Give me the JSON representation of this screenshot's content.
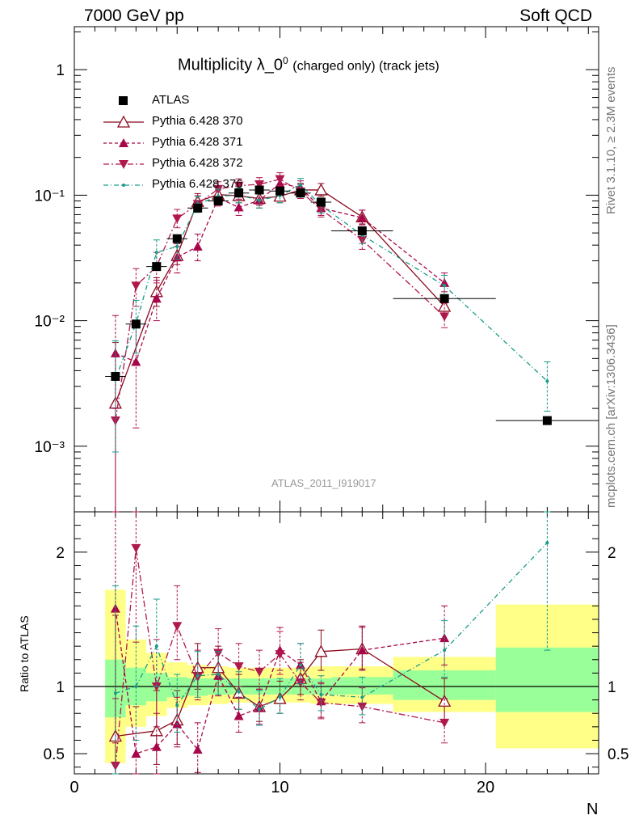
{
  "header": {
    "energy_label": "7000 GeV pp",
    "category_label": "Soft QCD",
    "rivet_label": "Rivet 3.1.10, ≥ 2.3M events",
    "mcplots_label": "mcplots.cern.ch [arXiv:1306.3436]",
    "analysis_ref": "ATLAS_2011_I919017"
  },
  "chart_data": [
    {
      "type": "scatter",
      "title": "Multiplicity λ_0",
      "title_sup": "0",
      "title_suffix": "(charged only) (track jets)",
      "xlabel": "N",
      "yscale": "log",
      "xlim": [
        0,
        25.5
      ],
      "ylim": [
        0.0003,
        2.2
      ],
      "y_ticks": [
        {
          "value": 1,
          "label": "1"
        },
        {
          "value": 0.1,
          "label": "10⁻¹"
        },
        {
          "value": 0.01,
          "label": "10⁻²"
        },
        {
          "value": 0.001,
          "label": "10⁻³"
        }
      ],
      "series": [
        {
          "name": "ATLAS",
          "color": "#000000",
          "x": [
            2,
            3,
            4,
            5,
            6,
            7,
            8,
            9,
            10,
            11,
            12,
            14,
            18,
            23
          ],
          "y": [
            0.0036,
            0.0094,
            0.027,
            0.045,
            0.079,
            0.09,
            0.104,
            0.11,
            0.108,
            0.104,
            0.088,
            0.052,
            0.015,
            0.0016
          ],
          "xerr": [
            0.5,
            0.5,
            0.5,
            0.5,
            0.5,
            0.5,
            0.5,
            0.5,
            0.5,
            0.5,
            0.5,
            1.5,
            2.5,
            2.5
          ]
        },
        {
          "name": "Pythia 6.428 370",
          "color": "#8b0a1e",
          "x": [
            2,
            4,
            5,
            6,
            7,
            8,
            9,
            10,
            11,
            12,
            14,
            18
          ],
          "y": [
            0.0022,
            0.017,
            0.033,
            0.089,
            0.101,
            0.099,
            0.094,
            0.098,
            0.11,
            0.11,
            0.067,
            0.013
          ],
          "yerr_low": [
            0.0019,
            0.004,
            0.005,
            0.012,
            0.012,
            0.012,
            0.011,
            0.011,
            0.012,
            0.012,
            0.008,
            0.002
          ],
          "yerr_high": [
            0.0045,
            0.005,
            0.006,
            0.014,
            0.014,
            0.014,
            0.013,
            0.013,
            0.014,
            0.014,
            0.009,
            0.003
          ]
        },
        {
          "name": "Pythia 6.428 371",
          "color": "#a8064a",
          "x": [
            2,
            3,
            4,
            5,
            6,
            7,
            8,
            9,
            10,
            11,
            12,
            14,
            18
          ],
          "y": [
            0.0055,
            0.0047,
            0.015,
            0.032,
            0.039,
            0.095,
            0.08,
            0.091,
            0.124,
            0.115,
            0.079,
            0.066,
            0.02
          ],
          "yerr_low": [
            0.0035,
            0.0033,
            0.005,
            0.008,
            0.009,
            0.013,
            0.011,
            0.012,
            0.014,
            0.013,
            0.01,
            0.008,
            0.003
          ],
          "yerr_high": [
            0.0055,
            0.005,
            0.006,
            0.009,
            0.01,
            0.015,
            0.013,
            0.014,
            0.016,
            0.015,
            0.012,
            0.01,
            0.004
          ]
        },
        {
          "name": "Pythia 6.428 372",
          "color": "#b0174d",
          "x": [
            2,
            3,
            4,
            5,
            6,
            7,
            8,
            9,
            10,
            11,
            12,
            14,
            18
          ],
          "y": [
            0.0016,
            0.019,
            0.027,
            0.065,
            0.085,
            0.112,
            0.119,
            0.122,
            0.134,
            0.107,
            0.077,
            0.044,
            0.0108
          ],
          "yerr_low": [
            0.0013,
            0.006,
            0.007,
            0.01,
            0.012,
            0.014,
            0.014,
            0.014,
            0.015,
            0.013,
            0.01,
            0.007,
            0.002
          ],
          "yerr_high": [
            0.002,
            0.007,
            0.008,
            0.012,
            0.014,
            0.016,
            0.016,
            0.016,
            0.017,
            0.015,
            0.012,
            0.008,
            0.003
          ]
        },
        {
          "name": "Pythia 6.428 376",
          "color": "#1a9c8a",
          "x": [
            2,
            3,
            4,
            5,
            6,
            7,
            8,
            9,
            10,
            11,
            12,
            14,
            18,
            23
          ],
          "y": [
            0.0034,
            0.0095,
            0.035,
            0.039,
            0.085,
            0.098,
            0.1,
            0.091,
            0.099,
            0.121,
            0.083,
            0.048,
            0.019,
            0.0033
          ],
          "yerr_low": [
            0.0025,
            0.004,
            0.008,
            0.008,
            0.012,
            0.013,
            0.013,
            0.012,
            0.012,
            0.014,
            0.011,
            0.007,
            0.003,
            0.0014
          ],
          "yerr_high": [
            0.0035,
            0.005,
            0.009,
            0.009,
            0.013,
            0.014,
            0.014,
            0.013,
            0.013,
            0.015,
            0.012,
            0.008,
            0.004,
            0.0014
          ]
        }
      ]
    },
    {
      "type": "scatter",
      "ylabel": "Ratio to ATLAS",
      "xlabel": "N",
      "xlim": [
        0,
        25.5
      ],
      "ylim": [
        0.35,
        2.3
      ],
      "x_ticks": [
        0,
        10,
        20
      ],
      "y_ticks": [
        0.5,
        1,
        2
      ],
      "reference_line": 1,
      "bands": [
        {
          "x_low": 1.5,
          "x_high": 2.5,
          "yellow": [
            0.43,
            1.72
          ],
          "green": [
            0.77,
            1.2
          ]
        },
        {
          "x_low": 2.5,
          "x_high": 3.5,
          "yellow": [
            0.7,
            1.35
          ],
          "green": [
            0.86,
            1.14
          ]
        },
        {
          "x_low": 3.5,
          "x_high": 4.5,
          "yellow": [
            0.78,
            1.25
          ],
          "green": [
            0.89,
            1.1
          ]
        },
        {
          "x_low": 4.5,
          "x_high": 5.5,
          "yellow": [
            0.84,
            1.18
          ],
          "green": [
            0.92,
            1.07
          ]
        },
        {
          "x_low": 5.5,
          "x_high": 6.5,
          "yellow": [
            0.86,
            1.16
          ],
          "green": [
            0.93,
            1.06
          ]
        },
        {
          "x_low": 6.5,
          "x_high": 7.5,
          "yellow": [
            0.87,
            1.15
          ],
          "green": [
            0.94,
            1.06
          ]
        },
        {
          "x_low": 7.5,
          "x_high": 8.5,
          "yellow": [
            0.88,
            1.14
          ],
          "green": [
            0.94,
            1.06
          ]
        },
        {
          "x_low": 8.5,
          "x_high": 9.5,
          "yellow": [
            0.88,
            1.14
          ],
          "green": [
            0.94,
            1.06
          ]
        },
        {
          "x_low": 9.5,
          "x_high": 10.5,
          "yellow": [
            0.88,
            1.14
          ],
          "green": [
            0.94,
            1.06
          ]
        },
        {
          "x_low": 10.5,
          "x_high": 11.5,
          "yellow": [
            0.88,
            1.14
          ],
          "green": [
            0.94,
            1.06
          ]
        },
        {
          "x_low": 11.5,
          "x_high": 12.5,
          "yellow": [
            0.87,
            1.15
          ],
          "green": [
            0.94,
            1.06
          ]
        },
        {
          "x_low": 12.5,
          "x_high": 15.5,
          "yellow": [
            0.87,
            1.15
          ],
          "green": [
            0.94,
            1.07
          ]
        },
        {
          "x_low": 15.5,
          "x_high": 20.5,
          "yellow": [
            0.81,
            1.22
          ],
          "green": [
            0.9,
            1.12
          ]
        },
        {
          "x_low": 20.5,
          "x_high": 25.5,
          "yellow": [
            0.54,
            1.61
          ],
          "green": [
            0.81,
            1.29
          ]
        }
      ],
      "series": [
        {
          "name": "Pythia 6.428 370",
          "color": "#8b0a1e",
          "x": [
            2,
            4,
            5,
            6,
            7,
            8,
            9,
            10,
            11,
            12,
            14,
            18
          ],
          "y": [
            0.63,
            0.67,
            0.75,
            1.14,
            1.14,
            0.95,
            0.85,
            0.91,
            1.06,
            1.26,
            1.28,
            0.89
          ],
          "yerr_low": [
            0.55,
            0.25,
            0.18,
            0.16,
            0.14,
            0.12,
            0.11,
            0.11,
            0.12,
            0.14,
            0.15,
            0.15
          ],
          "yerr_high": [
            0.9,
            0.3,
            0.22,
            0.18,
            0.16,
            0.14,
            0.13,
            0.13,
            0.14,
            0.16,
            0.17,
            0.17
          ]
        },
        {
          "name": "Pythia 6.428 371",
          "color": "#a8064a",
          "x": [
            2,
            3,
            4,
            5,
            6,
            7,
            8,
            9,
            10,
            11,
            12,
            14,
            18
          ],
          "y": [
            1.58,
            0.5,
            0.55,
            0.72,
            0.53,
            1.08,
            0.78,
            0.84,
            1.27,
            1.16,
            0.89,
            1.27,
            1.36
          ],
          "yerr_low": [
            1.0,
            0.3,
            0.2,
            0.17,
            0.17,
            0.15,
            0.12,
            0.12,
            0.15,
            0.14,
            0.12,
            0.15,
            0.2
          ],
          "yerr_high": [
            1.2,
            0.35,
            0.25,
            0.2,
            0.2,
            0.17,
            0.14,
            0.14,
            0.17,
            0.16,
            0.14,
            0.17,
            0.24
          ]
        },
        {
          "name": "Pythia 6.428 372",
          "color": "#b0174d",
          "x": [
            2,
            3,
            4,
            5,
            6,
            7,
            8,
            9,
            10,
            11,
            12,
            14,
            18
          ],
          "y": [
            0.41,
            2.03,
            1.0,
            1.45,
            1.07,
            1.25,
            1.15,
            1.11,
            1.24,
            1.03,
            0.88,
            0.85,
            0.73
          ],
          "yerr_low": [
            0.35,
            0.7,
            0.3,
            0.25,
            0.17,
            0.16,
            0.15,
            0.14,
            0.15,
            0.13,
            0.12,
            0.12,
            0.15
          ],
          "yerr_high": [
            0.5,
            0.8,
            0.35,
            0.3,
            0.2,
            0.18,
            0.17,
            0.16,
            0.17,
            0.15,
            0.14,
            0.14,
            0.18
          ]
        },
        {
          "name": "Pythia 6.428 376",
          "color": "#1a9c8a",
          "x": [
            2,
            3,
            4,
            5,
            6,
            7,
            8,
            9,
            10,
            11,
            12,
            14,
            18,
            23
          ],
          "y": [
            0.95,
            1.0,
            1.3,
            0.86,
            1.08,
            1.09,
            0.96,
            0.83,
            0.92,
            1.16,
            0.94,
            0.92,
            1.27,
            2.07
          ],
          "yerr_low": [
            0.7,
            0.4,
            0.3,
            0.2,
            0.16,
            0.15,
            0.13,
            0.12,
            0.12,
            0.14,
            0.12,
            0.13,
            0.2,
            0.8
          ],
          "yerr_high": [
            0.8,
            0.45,
            0.35,
            0.23,
            0.18,
            0.17,
            0.15,
            0.14,
            0.14,
            0.16,
            0.14,
            0.15,
            0.22,
            0.8
          ]
        }
      ]
    }
  ]
}
